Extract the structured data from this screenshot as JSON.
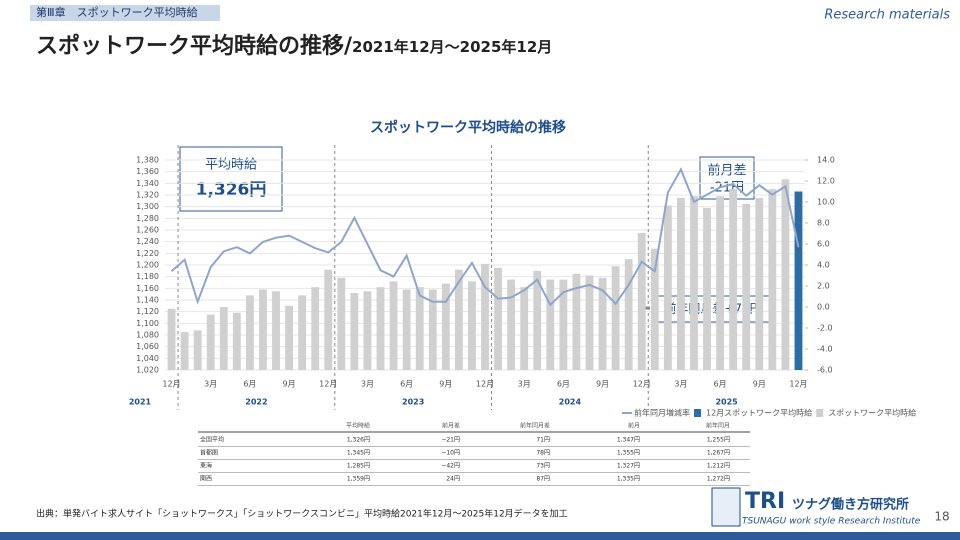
{
  "header": {
    "chapter": "第Ⅲ章　スポットワーク平均時給",
    "tag": "Research materials",
    "title": "スポットワーク平均時給の推移/",
    "subtitle": "2021年12月～2025年12月"
  },
  "chart_data": {
    "type": "bar",
    "title": "スポットワーク平均時給の推移",
    "categories": [
      "12月",
      null,
      null,
      "3月",
      null,
      null,
      "6月",
      null,
      null,
      "9月",
      null,
      null,
      "12月",
      null,
      null,
      "3月",
      null,
      null,
      "6月",
      null,
      null,
      "9月",
      null,
      null,
      "12月",
      null,
      null,
      "3月",
      null,
      null,
      "6月",
      null,
      null,
      "9月",
      null,
      null,
      "12月",
      null,
      null,
      "3月",
      null,
      null,
      "6月",
      null,
      null,
      "9月",
      null,
      null,
      "12月"
    ],
    "year_labels": [
      "2021",
      "2022",
      "2023",
      "2024",
      "2025"
    ],
    "series": [
      {
        "name": "スポットワーク平均時給",
        "color": "#d0d0d0",
        "values": [
          1125,
          1085,
          1088,
          1115,
          1128,
          1118,
          1148,
          1158,
          1155,
          1130,
          1148,
          1162,
          1192,
          1178,
          1152,
          1155,
          1162,
          1172,
          1158,
          1162,
          1158,
          1168,
          1192,
          1172,
          1202,
          1195,
          1175,
          1162,
          1190,
          1175,
          1175,
          1185,
          1182,
          1178,
          1198,
          1210,
          1255,
          1228,
          1302,
          1315,
          1318,
          1298,
          1318,
          1330,
          1305,
          1315,
          1330,
          1347,
          null
        ]
      },
      {
        "name": "12月スポットワーク平均時給",
        "color": "#2e6ca4",
        "values": [
          null,
          null,
          null,
          null,
          null,
          null,
          null,
          null,
          null,
          null,
          null,
          null,
          null,
          null,
          null,
          null,
          null,
          null,
          null,
          null,
          null,
          null,
          null,
          null,
          null,
          null,
          null,
          null,
          null,
          null,
          null,
          null,
          null,
          null,
          null,
          null,
          null,
          null,
          null,
          null,
          null,
          null,
          null,
          null,
          null,
          null,
          null,
          null,
          1326
        ]
      },
      {
        "name": "前年同月増減率",
        "color": "#8ea6cc",
        "type": "line",
        "axis": "y2",
        "values": [
          3.4,
          4.5,
          0.5,
          3.8,
          5.3,
          5.7,
          5.1,
          6.2,
          6.6,
          6.8,
          6.2,
          5.6,
          5.2,
          6.2,
          8.5,
          6.0,
          3.5,
          2.9,
          4.9,
          1.1,
          0.5,
          0.5,
          2.4,
          4.2,
          1.9,
          0.8,
          0.9,
          1.6,
          2.6,
          0.2,
          1.4,
          1.8,
          2.1,
          1.6,
          0.3,
          2.1,
          4.3,
          3.4,
          10.9,
          13.1,
          10.0,
          10.7,
          11.4,
          11.7,
          10.6,
          11.6,
          10.7,
          11.5,
          5.7
        ]
      }
    ],
    "ylim": [
      1020,
      1380
    ],
    "yticks": [
      {
        "value": 1020,
        "label": "1,020"
      },
      {
        "value": 1040,
        "label": "1,040"
      },
      {
        "value": 1060,
        "label": "1,060"
      },
      {
        "value": 1080,
        "label": "1,080"
      },
      {
        "value": 1100,
        "label": "1,100"
      },
      {
        "value": 1120,
        "label": "1,120"
      },
      {
        "value": 1140,
        "label": "1,140"
      },
      {
        "value": 1160,
        "label": "1,160"
      },
      {
        "value": 1180,
        "label": "1,180"
      },
      {
        "value": 1200,
        "label": "1,200"
      },
      {
        "value": 1220,
        "label": "1,220"
      },
      {
        "value": 1240,
        "label": "1,240"
      },
      {
        "value": 1260,
        "label": "1,260"
      },
      {
        "value": 1280,
        "label": "1,280"
      },
      {
        "value": 1300,
        "label": "1,300"
      },
      {
        "value": 1320,
        "label": "1,320"
      },
      {
        "value": 1340,
        "label": "1,340"
      },
      {
        "value": 1360,
        "label": "1,360"
      },
      {
        "value": 1380,
        "label": "1,380"
      }
    ],
    "y2lim": [
      -6,
      14
    ],
    "y2ticks": [
      {
        "value": -6,
        "label": "-6.0"
      },
      {
        "value": -4,
        "label": "-4.0"
      },
      {
        "value": -2,
        "label": "-2.0"
      },
      {
        "value": 0,
        "label": "0.0"
      },
      {
        "value": 2,
        "label": "2.0"
      },
      {
        "value": 4,
        "label": "4.0"
      },
      {
        "value": 6,
        "label": "6.0"
      },
      {
        "value": 8,
        "label": "8.0"
      },
      {
        "value": 10,
        "label": "10.0"
      },
      {
        "value": 12,
        "label": "12.0"
      },
      {
        "value": 14,
        "label": "14.0"
      }
    ],
    "grid": true,
    "callouts": {
      "avg_label": "平均時給",
      "avg_value": "1,326円",
      "mom_label": "前月差",
      "mom_value": "-21円",
      "yoy": "前年同月差+71円"
    }
  },
  "table": {
    "header": [
      "",
      "平均時給",
      "前月差",
      "前年同月差",
      "前月",
      "前年同月"
    ],
    "rows": [
      [
        "全国平均",
        "1,326円",
        "−21円",
        "71円",
        "1,347円",
        "1,255円"
      ],
      [
        "首都圏",
        "1,345円",
        "−10円",
        "78円",
        "1,355円",
        "1,267円"
      ],
      [
        "東海",
        "1,285円",
        "−42円",
        "73円",
        "1,327円",
        "1,212円"
      ],
      [
        "関西",
        "1,359円",
        "24円",
        "87円",
        "1,335円",
        "1,272円"
      ]
    ]
  },
  "footer": {
    "source": "出典：単発バイト求人サイト「ショットワークス」「ショットワークスコンビニ」平均時給2021年12月～2025年12月データを加工",
    "logo": "TRI",
    "org_jp": "ツナグ働き方研究所",
    "org_en": "TSUNAGU work style Research Institute",
    "page": "18"
  }
}
